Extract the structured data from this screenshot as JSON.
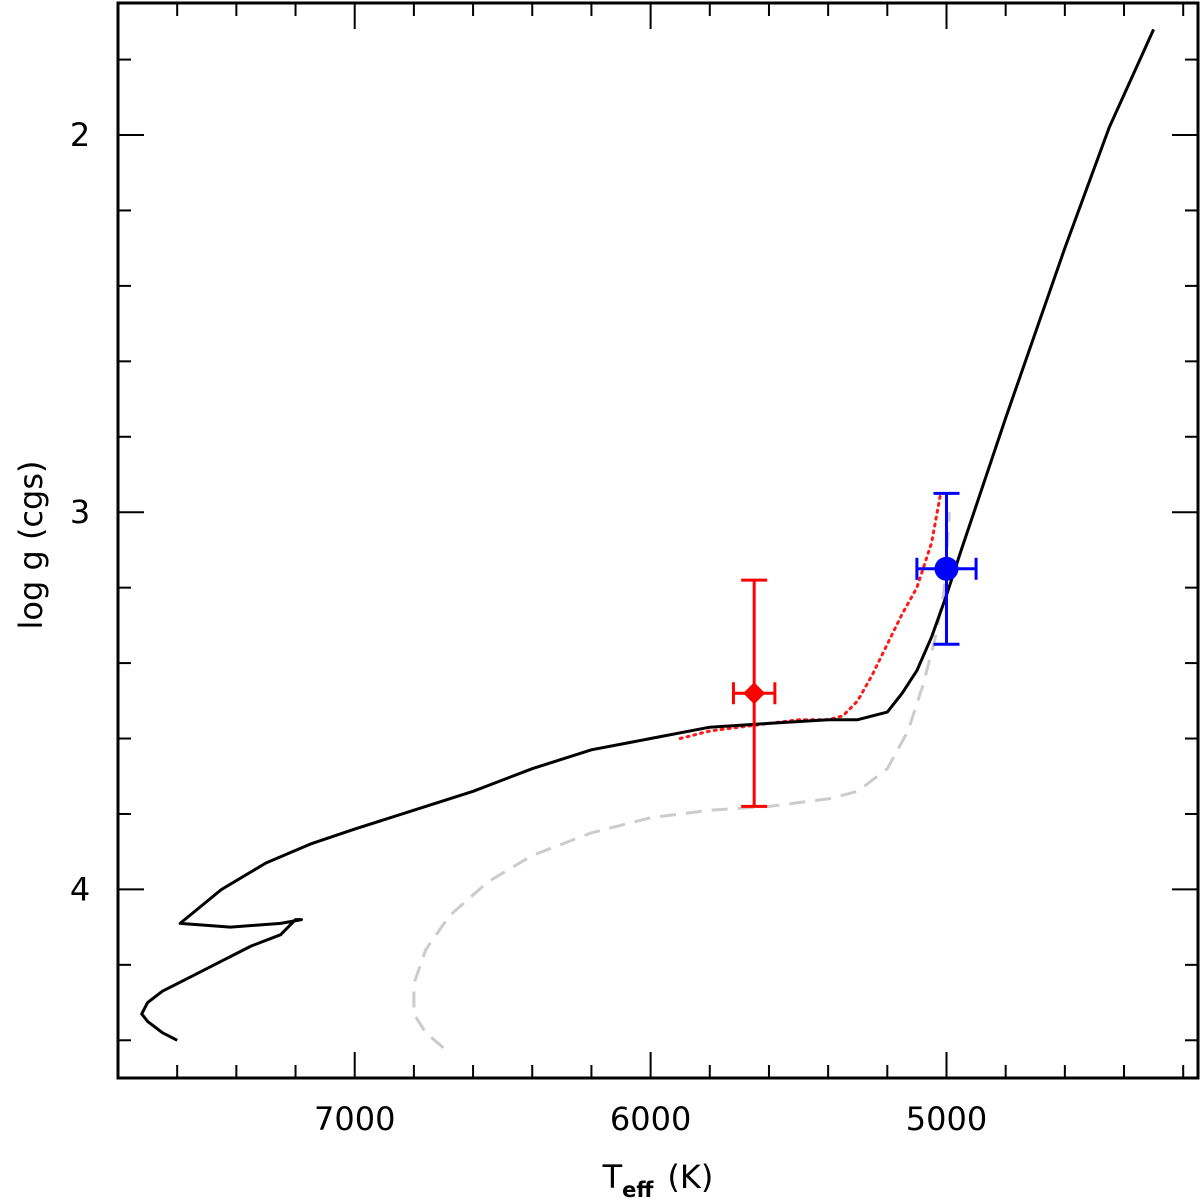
{
  "chart_data": {
    "type": "line",
    "title": "",
    "xlabel_main": "T",
    "xlabel_sub": "eff",
    "xlabel_unit": "(K)",
    "ylabel": "log g (cgs)",
    "xlim": [
      7800,
      4150
    ],
    "ylim": [
      4.5,
      1.65
    ],
    "x_ticks": [
      7000,
      6000,
      5000
    ],
    "x_minor_step": 200,
    "y_ticks": [
      2,
      3,
      4
    ],
    "y_minor_step": 0.2,
    "series": [
      {
        "name": "track-solid",
        "style": "solid",
        "color": "#000000",
        "x": [
          7600,
          7650,
          7700,
          7720,
          7700,
          7650,
          7550,
          7450,
          7350,
          7250,
          7200,
          7180,
          7250,
          7420,
          7590,
          7450,
          7300,
          7150,
          7000,
          6800,
          6600,
          6400,
          6200,
          6000,
          5800,
          5600,
          5400,
          5300,
          5200,
          5150,
          5100,
          5050,
          5000,
          4950,
          4800,
          4600,
          4450,
          4300
        ],
        "y": [
          4.4,
          4.38,
          4.35,
          4.33,
          4.3,
          4.27,
          4.23,
          4.19,
          4.15,
          4.12,
          4.08,
          4.08,
          4.09,
          4.1,
          4.09,
          4.0,
          3.93,
          3.88,
          3.84,
          3.79,
          3.74,
          3.68,
          3.63,
          3.6,
          3.57,
          3.56,
          3.55,
          3.55,
          3.53,
          3.48,
          3.42,
          3.33,
          3.22,
          3.1,
          2.75,
          2.3,
          1.98,
          1.72
        ]
      },
      {
        "name": "track-dotted",
        "style": "dotted",
        "color": "#ff1a1a",
        "x": [
          5900,
          5800,
          5700,
          5600,
          5500,
          5400,
          5350,
          5300,
          5250,
          5200,
          5150,
          5100,
          5050,
          5020
        ],
        "y": [
          3.6,
          3.58,
          3.57,
          3.56,
          3.55,
          3.55,
          3.54,
          3.5,
          3.43,
          3.35,
          3.27,
          3.2,
          3.08,
          2.95
        ]
      },
      {
        "name": "track-dashed",
        "style": "dashed",
        "color": "#cccccc",
        "x": [
          6700,
          6760,
          6800,
          6800,
          6760,
          6680,
          6550,
          6400,
          6200,
          6000,
          5800,
          5600,
          5400,
          5300,
          5200,
          5130,
          5080,
          5040,
          5010,
          5000,
          4990
        ],
        "y": [
          4.42,
          4.38,
          4.33,
          4.25,
          4.16,
          4.07,
          3.98,
          3.91,
          3.85,
          3.81,
          3.79,
          3.78,
          3.76,
          3.74,
          3.68,
          3.58,
          3.46,
          3.34,
          3.22,
          3.12,
          3.0
        ]
      }
    ],
    "points": [
      {
        "name": "red-diamond",
        "marker": "diamond",
        "color": "#ff0000",
        "x": 5650,
        "y": 3.48,
        "xerr": 70,
        "yerr_up": 0.3,
        "yerr_down": 0.3
      },
      {
        "name": "blue-circle",
        "marker": "circle",
        "color": "#0000ff",
        "x": 5000,
        "y": 3.15,
        "xerr": 100,
        "yerr_up": 0.2,
        "yerr_down": 0.2
      }
    ]
  }
}
